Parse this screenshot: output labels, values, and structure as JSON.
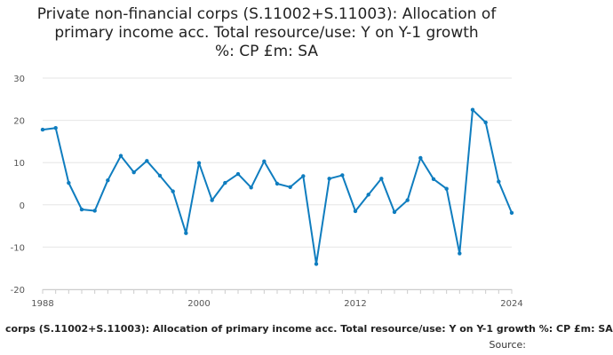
{
  "chart_data": {
    "type": "line",
    "title_lines": [
      "Private non-financial corps (S.11002+S.11003): Allocation of",
      "primary income acc. Total resource/use: Y on Y-1 growth",
      "%: CP £m: SA"
    ],
    "x": [
      1988,
      1989,
      1990,
      1991,
      1992,
      1993,
      1994,
      1995,
      1996,
      1997,
      1998,
      1999,
      2000,
      2001,
      2002,
      2003,
      2004,
      2005,
      2006,
      2007,
      2008,
      2009,
      2010,
      2011,
      2012,
      2013,
      2014,
      2015,
      2016,
      2017,
      2018,
      2019,
      2020,
      2021,
      2022,
      2023,
      2024
    ],
    "series": [
      {
        "values": [
          17.8,
          18.2,
          5.2,
          -1.1,
          -1.4,
          5.8,
          11.6,
          7.7,
          10.4,
          6.9,
          3.2,
          -6.7,
          9.9,
          1.1,
          5.2,
          7.3,
          4.1,
          10.3,
          5.0,
          4.2,
          6.8,
          -14.0,
          6.2,
          7.0,
          -1.5,
          2.4,
          6.2,
          -1.7,
          1.1,
          11.1,
          6.1,
          3.8,
          -11.5,
          22.5,
          19.5,
          5.5,
          -1.9
        ],
        "color": "#0f7dbf"
      }
    ],
    "xticks": [
      1988,
      2000,
      2012,
      2024
    ],
    "yticks": [
      -20,
      -10,
      0,
      10,
      20,
      30
    ],
    "ylim": [
      -20,
      30
    ],
    "xlim": [
      1988,
      2024
    ],
    "grid": true,
    "footer_text": "corps (S.11002+S.11003): Allocation of primary income acc. Total resource/use: Y on Y-1 growth %: CP £m: SA",
    "source_text": "Source:"
  }
}
